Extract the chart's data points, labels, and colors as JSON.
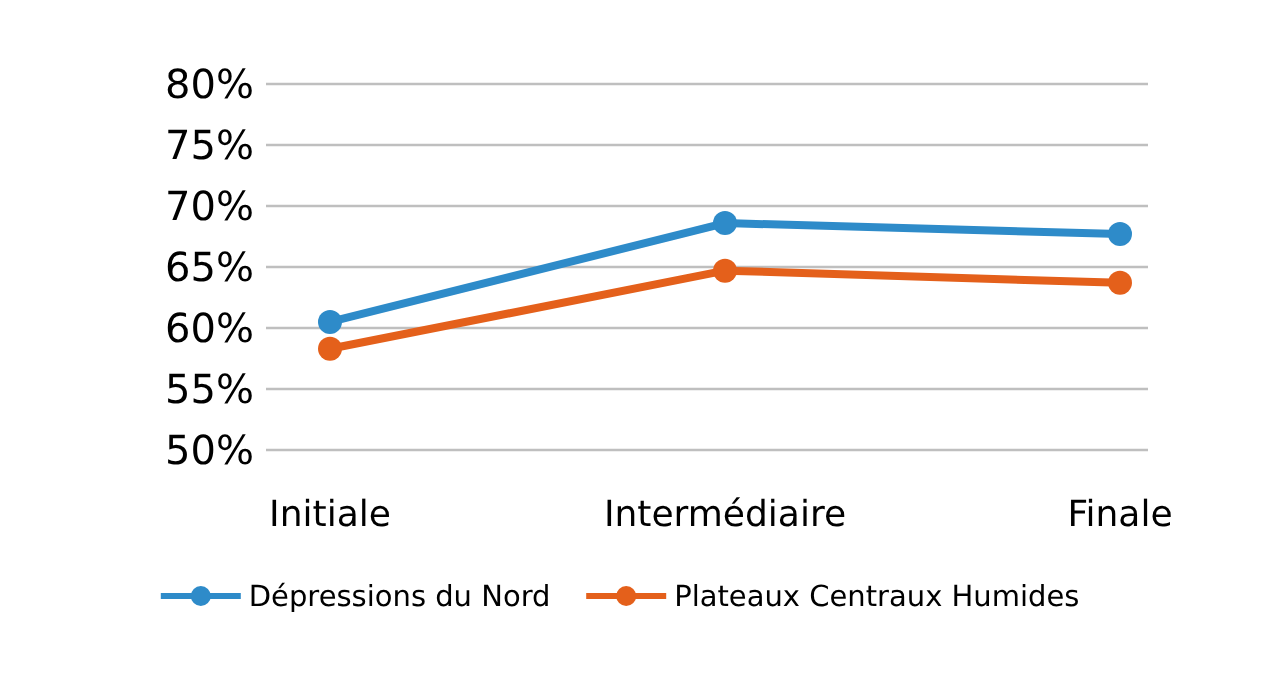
{
  "chart_data": {
    "type": "line",
    "categories": [
      "Initiale",
      "Intermédiaire",
      "Finale"
    ],
    "series": [
      {
        "name": "Dépressions du Nord",
        "color": "#2e8bc9",
        "values": [
          60.5,
          68.6,
          67.7
        ]
      },
      {
        "name": "Plateaux Centraux Humides",
        "color": "#e4601b",
        "values": [
          58.3,
          64.7,
          63.7
        ]
      }
    ],
    "ylim": [
      50,
      80
    ],
    "yticks": [
      {
        "value": 50,
        "label": "50%"
      },
      {
        "value": 55,
        "label": "55%"
      },
      {
        "value": 60,
        "label": "60%"
      },
      {
        "value": 65,
        "label": "65%"
      },
      {
        "value": 70,
        "label": "70%"
      },
      {
        "value": 75,
        "label": "75%"
      },
      {
        "value": 80,
        "label": "80%"
      }
    ],
    "grid": "y",
    "legend": "bottom",
    "marker": "circle",
    "line_style": "solid"
  }
}
